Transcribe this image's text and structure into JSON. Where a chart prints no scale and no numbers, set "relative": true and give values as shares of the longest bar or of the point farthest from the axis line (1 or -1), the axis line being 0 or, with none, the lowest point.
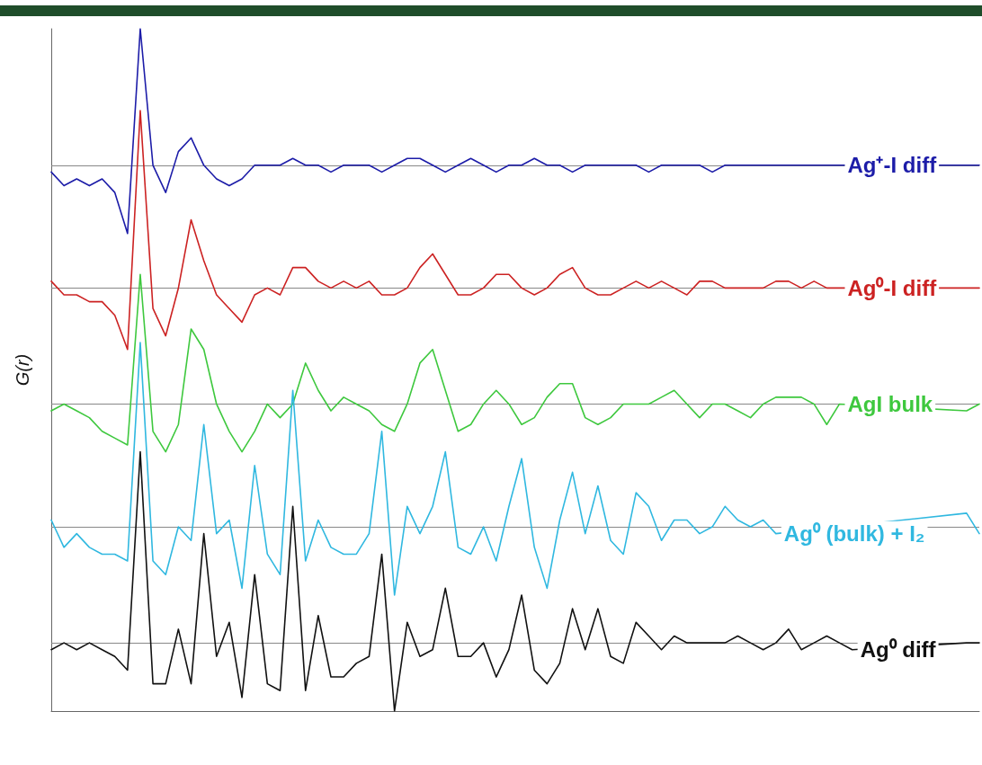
{
  "chart_data": {
    "type": "line",
    "ylabel": "G(r)",
    "relative": true,
    "marker": "none",
    "line_style": "solid",
    "categories": [
      null,
      null,
      null,
      null,
      null,
      null,
      null,
      null,
      null,
      null,
      null,
      null,
      null,
      null,
      null,
      null,
      null,
      null,
      null,
      null,
      null,
      null,
      null,
      null,
      null,
      null,
      null,
      null,
      null,
      null,
      null,
      null,
      null,
      null,
      null,
      null,
      null,
      null,
      null,
      null,
      null,
      null,
      null,
      null,
      null,
      null,
      null,
      null,
      null,
      null,
      null,
      null,
      null,
      null,
      null,
      null,
      null,
      null,
      null,
      null,
      null,
      null,
      null,
      null,
      null,
      null,
      null,
      null,
      null,
      null,
      null,
      null,
      null,
      null
    ],
    "series": [
      {
        "name": "Ag⁺-I diff",
        "color": "#1c1ca8",
        "values": [
          0.79,
          0.77,
          0.78,
          0.77,
          0.78,
          0.76,
          0.7,
          1,
          0.8,
          0.76,
          0.82,
          0.84,
          0.8,
          0.78,
          0.77,
          0.78,
          0.8,
          0.8,
          0.8,
          0.81,
          0.8,
          0.8,
          0.79,
          0.8,
          0.8,
          0.8,
          0.79,
          0.8,
          0.81,
          0.81,
          0.8,
          0.79,
          0.8,
          0.81,
          0.8,
          0.79,
          0.8,
          0.8,
          0.81,
          0.8,
          0.8,
          0.79,
          0.8,
          0.8,
          0.8,
          0.8,
          0.8,
          0.79,
          0.8,
          0.8,
          0.8,
          0.8,
          0.79,
          0.8,
          0.8,
          0.8,
          0.8,
          0.8,
          0.8,
          0.8,
          0.8,
          0.8,
          0.8,
          null,
          null,
          null,
          null,
          null,
          null,
          null,
          null,
          null,
          0.8,
          0.8
        ]
      },
      {
        "name": "Ag⁰-I diff",
        "color": "#cc2222",
        "values": [
          0.63,
          0.61,
          0.61,
          0.6,
          0.6,
          0.58,
          0.53,
          0.88,
          0.59,
          0.55,
          0.62,
          0.72,
          0.66,
          0.61,
          0.59,
          0.57,
          0.61,
          0.62,
          0.61,
          0.65,
          0.65,
          0.63,
          0.62,
          0.63,
          0.62,
          0.63,
          0.61,
          0.61,
          0.62,
          0.65,
          0.67,
          0.64,
          0.61,
          0.61,
          0.62,
          0.64,
          0.64,
          0.62,
          0.61,
          0.62,
          0.64,
          0.65,
          0.62,
          0.61,
          0.61,
          0.62,
          0.63,
          0.62,
          0.63,
          0.62,
          0.61,
          0.63,
          0.63,
          0.62,
          0.62,
          0.62,
          0.62,
          0.63,
          0.63,
          0.62,
          0.63,
          0.62,
          0.62,
          null,
          null,
          null,
          null,
          null,
          null,
          null,
          null,
          null,
          0.62,
          0.62
        ]
      },
      {
        "name": "AgI bulk",
        "color": "#3ec83e",
        "values": [
          0.44,
          0.45,
          0.44,
          0.43,
          0.41,
          0.4,
          0.39,
          0.64,
          0.41,
          0.38,
          0.42,
          0.56,
          0.53,
          0.45,
          0.41,
          0.38,
          0.41,
          0.45,
          0.43,
          0.45,
          0.51,
          0.47,
          0.44,
          0.46,
          0.45,
          0.44,
          0.42,
          0.41,
          0.45,
          0.51,
          0.53,
          0.47,
          0.41,
          0.42,
          0.45,
          0.47,
          0.45,
          0.42,
          0.43,
          0.46,
          0.48,
          0.48,
          0.43,
          0.42,
          0.43,
          0.45,
          0.45,
          0.45,
          0.46,
          0.47,
          0.45,
          0.43,
          0.45,
          0.45,
          0.44,
          0.43,
          0.45,
          0.46,
          0.46,
          0.46,
          0.45,
          0.42,
          0.45,
          null,
          null,
          null,
          null,
          null,
          null,
          null,
          null,
          null,
          0.44,
          0.45
        ]
      },
      {
        "name": "Ag⁰ (bulk) + I₂",
        "color": "#30b8e0",
        "values": [
          0.28,
          0.24,
          0.26,
          0.24,
          0.23,
          0.23,
          0.22,
          0.54,
          0.22,
          0.2,
          0.27,
          0.25,
          0.42,
          0.26,
          0.28,
          0.18,
          0.36,
          0.23,
          0.2,
          0.47,
          0.22,
          0.28,
          0.24,
          0.23,
          0.23,
          0.26,
          0.41,
          0.17,
          0.3,
          0.26,
          0.3,
          0.38,
          0.24,
          0.23,
          0.27,
          0.22,
          0.3,
          0.37,
          0.24,
          0.18,
          0.28,
          0.35,
          0.26,
          0.33,
          0.25,
          0.23,
          0.32,
          0.3,
          0.25,
          0.28,
          0.28,
          0.26,
          0.27,
          0.3,
          0.28,
          0.27,
          0.28,
          0.26,
          null,
          null,
          null,
          null,
          null,
          null,
          null,
          null,
          null,
          null,
          null,
          null,
          null,
          null,
          0.29,
          0.26
        ]
      },
      {
        "name": "Ag⁰ diff",
        "color": "#111111",
        "values": [
          0.09,
          0.1,
          0.09,
          0.1,
          0.09,
          0.08,
          0.06,
          0.38,
          0.04,
          0.04,
          0.12,
          0.04,
          0.26,
          0.08,
          0.13,
          0.02,
          0.2,
          0.04,
          0.03,
          0.3,
          0.03,
          0.14,
          0.05,
          0.05,
          0.07,
          0.08,
          0.23,
          0,
          0.13,
          0.08,
          0.09,
          0.18,
          0.08,
          0.08,
          0.1,
          0.05,
          0.09,
          0.17,
          0.06,
          0.04,
          0.07,
          0.15,
          0.09,
          0.15,
          0.08,
          0.07,
          0.13,
          0.11,
          0.09,
          0.11,
          0.1,
          0.1,
          0.1,
          0.1,
          0.11,
          0.1,
          0.09,
          0.1,
          0.12,
          0.09,
          0.1,
          0.11,
          0.1,
          0.09,
          null,
          null,
          null,
          null,
          null,
          null,
          null,
          null,
          0.1,
          0.1
        ]
      }
    ],
    "ref_lines": [
      {
        "axis": "y",
        "value": 0.8,
        "color": "#888888"
      },
      {
        "axis": "y",
        "value": 0.62,
        "color": "#888888"
      },
      {
        "axis": "y",
        "value": 0.45,
        "color": "#888888"
      },
      {
        "axis": "y",
        "value": 0.27,
        "color": "#888888"
      },
      {
        "axis": "y",
        "value": 0.1,
        "color": "#888888"
      }
    ]
  }
}
